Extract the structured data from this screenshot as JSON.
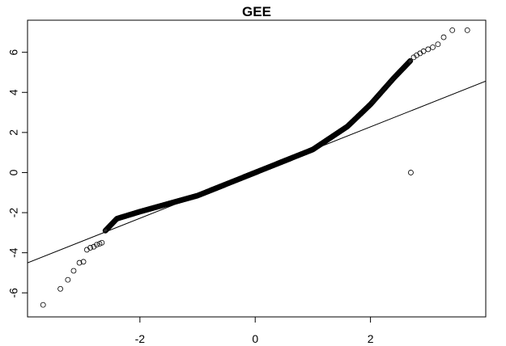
{
  "chart_data": {
    "type": "scatter",
    "subtype": "qq-plot",
    "title": "GEE",
    "xlabel": "",
    "ylabel": "",
    "xlim": [
      -3.95,
      4.0
    ],
    "ylim": [
      -7.2,
      7.6
    ],
    "x_ticks": [
      -2,
      0,
      2
    ],
    "x_tick_labels": [
      "-2",
      "0",
      "2"
    ],
    "y_ticks": [
      -6,
      -4,
      -2,
      0,
      2,
      4,
      6
    ],
    "y_tick_labels": [
      "-6",
      "-4",
      "-2",
      "0",
      "2",
      "4",
      "6"
    ],
    "grid": false,
    "legend": "none",
    "point_style": "open-circle",
    "reference_line": {
      "intercept": 0.0,
      "slope": 1.14
    },
    "curve_knots": [
      {
        "x": -2.6,
        "y": -2.9
      },
      {
        "x": -2.4,
        "y": -2.3
      },
      {
        "x": -2.0,
        "y": -1.95
      },
      {
        "x": -1.0,
        "y": -1.15
      },
      {
        "x": 0.0,
        "y": 0.0
      },
      {
        "x": 1.0,
        "y": 1.15
      },
      {
        "x": 1.6,
        "y": 2.3
      },
      {
        "x": 2.0,
        "y": 3.4
      },
      {
        "x": 2.4,
        "y": 4.7
      },
      {
        "x": 2.7,
        "y": 5.6
      }
    ],
    "sparse_points": [
      {
        "x": -3.68,
        "y": -6.6
      },
      {
        "x": -3.38,
        "y": -5.8
      },
      {
        "x": -3.25,
        "y": -5.35
      },
      {
        "x": -3.15,
        "y": -4.9
      },
      {
        "x": -3.05,
        "y": -4.5
      },
      {
        "x": -2.98,
        "y": -4.45
      },
      {
        "x": -2.92,
        "y": -3.85
      },
      {
        "x": -2.86,
        "y": -3.75
      },
      {
        "x": -2.8,
        "y": -3.7
      },
      {
        "x": -2.75,
        "y": -3.6
      },
      {
        "x": -2.7,
        "y": -3.55
      },
      {
        "x": -2.66,
        "y": -3.5
      },
      {
        "x": 2.75,
        "y": 5.75
      },
      {
        "x": 2.8,
        "y": 5.85
      },
      {
        "x": 2.86,
        "y": 5.95
      },
      {
        "x": 2.92,
        "y": 6.05
      },
      {
        "x": 3.0,
        "y": 6.15
      },
      {
        "x": 3.08,
        "y": 6.25
      },
      {
        "x": 3.17,
        "y": 6.4
      },
      {
        "x": 3.27,
        "y": 6.75
      },
      {
        "x": 3.42,
        "y": 7.1
      },
      {
        "x": 3.68,
        "y": 7.1
      }
    ],
    "colors": {
      "points": "#000000",
      "line": "#000000",
      "axes": "#000000"
    }
  }
}
